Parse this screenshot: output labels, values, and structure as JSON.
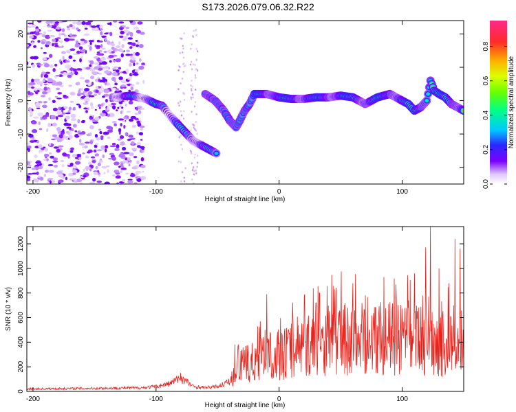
{
  "title": "S173.2026.079.06.32.R22",
  "colors": {
    "snr_line": "#e8231c",
    "axis": "#000000",
    "background": "#ffffff"
  },
  "chart_data": [
    {
      "type": "heatmap",
      "name": "spectrogram",
      "xlabel": "Height of straight line (km)",
      "ylabel": "Frequency (Hz)",
      "xlim": [
        -205,
        150
      ],
      "ylim": [
        -25,
        24
      ],
      "x_ticks": [
        -200,
        -100,
        0,
        100
      ],
      "x_tick_labels": [
        "-200",
        "-100",
        "0",
        "100"
      ],
      "y_ticks": [
        -20,
        -10,
        0,
        10,
        20
      ],
      "y_tick_labels": [
        "-20",
        "-10",
        "0",
        "10",
        "20"
      ],
      "colorbar": {
        "label": "Normalized spectral amplitude",
        "range": [
          0,
          0.95
        ],
        "ticks": [
          0.0,
          0.2,
          0.4,
          0.6,
          0.8
        ],
        "tick_labels": [
          "0.0",
          "0.2",
          "0.4",
          "0.6",
          "0.8"
        ]
      },
      "main_track": [
        [
          -135,
          1
        ],
        [
          -120,
          1.5
        ],
        [
          -108,
          0.5
        ],
        [
          -100,
          -1
        ],
        [
          -95,
          -1.5
        ],
        [
          -90,
          -4
        ],
        [
          -85,
          -6
        ],
        [
          -80,
          -8
        ],
        [
          -75,
          -10
        ],
        [
          -70,
          -12
        ],
        [
          -65,
          -13
        ],
        [
          -60,
          -14
        ],
        [
          -55,
          -15
        ],
        [
          -50,
          -16
        ]
      ],
      "secondary_track": [
        [
          -60,
          2
        ],
        [
          -52,
          0
        ],
        [
          -45,
          -3
        ],
        [
          -40,
          -6
        ],
        [
          -35,
          -8
        ],
        [
          -32,
          -6
        ],
        [
          -28,
          -3
        ],
        [
          -24,
          -1
        ],
        [
          -20,
          2
        ],
        [
          -10,
          2
        ],
        [
          0,
          1
        ],
        [
          10,
          0.5
        ],
        [
          20,
          0.5
        ],
        [
          30,
          1
        ],
        [
          40,
          1
        ],
        [
          50,
          1.5
        ],
        [
          60,
          1
        ],
        [
          65,
          0
        ],
        [
          70,
          -1
        ],
        [
          75,
          0
        ],
        [
          80,
          1
        ],
        [
          90,
          2
        ],
        [
          100,
          0
        ],
        [
          105,
          -1
        ],
        [
          110,
          -3
        ],
        [
          115,
          -2
        ],
        [
          120,
          0
        ],
        [
          123,
          6
        ],
        [
          126,
          3
        ],
        [
          130,
          2
        ],
        [
          135,
          1
        ],
        [
          140,
          -1
        ],
        [
          145,
          -2
        ],
        [
          150,
          -3
        ]
      ]
    },
    {
      "type": "line",
      "name": "snr",
      "xlabel": "Height of straight line (km)",
      "ylabel": "SNR (10 * v/v)",
      "xlim": [
        -205,
        150
      ],
      "ylim": [
        0,
        1340
      ],
      "x_ticks": [
        -200,
        -100,
        0,
        100
      ],
      "x_tick_labels": [
        "-200",
        "-100",
        "0",
        "100"
      ],
      "y_ticks": [
        0,
        200,
        400,
        600,
        800,
        1000,
        1200
      ],
      "y_tick_labels": [
        "0",
        "200",
        "400",
        "600",
        "800",
        "1000",
        "1200"
      ],
      "envelope": [
        [
          -205,
          20
        ],
        [
          -150,
          25
        ],
        [
          -110,
          30
        ],
        [
          -100,
          40
        ],
        [
          -90,
          60
        ],
        [
          -80,
          110
        ],
        [
          -75,
          80
        ],
        [
          -70,
          40
        ],
        [
          -60,
          30
        ],
        [
          -50,
          40
        ],
        [
          -40,
          80
        ],
        [
          -36,
          200
        ],
        [
          -30,
          260
        ],
        [
          -20,
          280
        ],
        [
          -10,
          330
        ],
        [
          0,
          360
        ],
        [
          10,
          400
        ],
        [
          20,
          440
        ],
        [
          30,
          470
        ],
        [
          40,
          500
        ],
        [
          50,
          520
        ],
        [
          60,
          510
        ],
        [
          70,
          520
        ],
        [
          80,
          530
        ],
        [
          90,
          520
        ],
        [
          100,
          510
        ],
        [
          110,
          500
        ],
        [
          120,
          510
        ],
        [
          130,
          480
        ],
        [
          140,
          440
        ],
        [
          150,
          380
        ]
      ],
      "spikes": [
        [
          -80,
          150
        ],
        [
          -36,
          350
        ],
        [
          -10,
          790
        ],
        [
          10,
          650
        ],
        [
          30,
          720
        ],
        [
          45,
          830
        ],
        [
          60,
          880
        ],
        [
          70,
          780
        ],
        [
          85,
          930
        ],
        [
          95,
          870
        ],
        [
          110,
          960
        ],
        [
          119,
          1170
        ],
        [
          123,
          1340
        ],
        [
          130,
          1000
        ],
        [
          138,
          880
        ],
        [
          143,
          1240
        ],
        [
          147,
          1160
        ]
      ]
    }
  ]
}
